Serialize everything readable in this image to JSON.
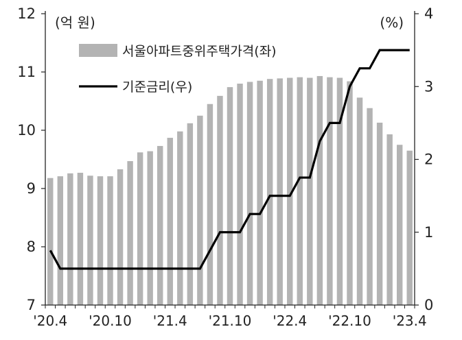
{
  "chart_data": {
    "type": "bar+line",
    "x": [
      "'20.4",
      "'20.5",
      "'20.6",
      "'20.7",
      "'20.8",
      "'20.9",
      "'20.10",
      "'20.11",
      "'20.12",
      "'21.1",
      "'21.2",
      "'21.3",
      "'21.4",
      "'21.5",
      "'21.6",
      "'21.7",
      "'21.8",
      "'21.9",
      "'21.10",
      "'21.11",
      "'21.12",
      "'22.1",
      "'22.2",
      "'22.3",
      "'22.4",
      "'22.5",
      "'22.6",
      "'22.7",
      "'22.8",
      "'22.9",
      "'22.10",
      "'22.11",
      "'22.12",
      "'23.1",
      "'23.2",
      "'23.3",
      "'23.4"
    ],
    "x_tick_labels": [
      "'20.4",
      "'20.10",
      "'21.4",
      "'21.10",
      "'22.4",
      "'22.10",
      "'23.4"
    ],
    "series": [
      {
        "name": "서울아파트중위주택가격(좌)",
        "type": "bar",
        "axis": "left",
        "color": "#b3b3b3",
        "values": [
          9.18,
          9.21,
          9.26,
          9.27,
          9.22,
          9.21,
          9.21,
          9.33,
          9.47,
          9.62,
          9.64,
          9.73,
          9.87,
          9.98,
          10.12,
          10.25,
          10.45,
          10.59,
          10.74,
          10.8,
          10.83,
          10.85,
          10.88,
          10.89,
          10.9,
          10.91,
          10.9,
          10.93,
          10.91,
          10.9,
          10.84,
          10.56,
          10.38,
          10.13,
          9.93,
          9.75,
          9.65
        ]
      },
      {
        "name": "기준금리(우)",
        "type": "line",
        "axis": "right",
        "color": "#000000",
        "values": [
          0.75,
          0.5,
          0.5,
          0.5,
          0.5,
          0.5,
          0.5,
          0.5,
          0.5,
          0.5,
          0.5,
          0.5,
          0.5,
          0.5,
          0.5,
          0.5,
          0.75,
          1.0,
          1.0,
          1.0,
          1.25,
          1.25,
          1.5,
          1.5,
          1.5,
          1.75,
          1.75,
          2.25,
          2.5,
          2.5,
          3.0,
          3.25,
          3.25,
          3.5,
          3.5,
          3.5,
          3.5
        ]
      }
    ],
    "left_axis": {
      "unit": "(억 원)",
      "ylim": [
        7,
        12
      ],
      "ticks": [
        7,
        8,
        9,
        10,
        11,
        12
      ]
    },
    "right_axis": {
      "unit": "(%)",
      "ylim": [
        0,
        4
      ],
      "ticks": [
        0,
        1,
        2,
        3,
        4
      ]
    },
    "legend": [
      {
        "label": "서울아파트중위주택가격(좌)",
        "kind": "bar",
        "color": "#b3b3b3"
      },
      {
        "label": "기준금리(우)",
        "kind": "line",
        "color": "#000000"
      }
    ],
    "legend_position": "top-left",
    "grid": false
  }
}
